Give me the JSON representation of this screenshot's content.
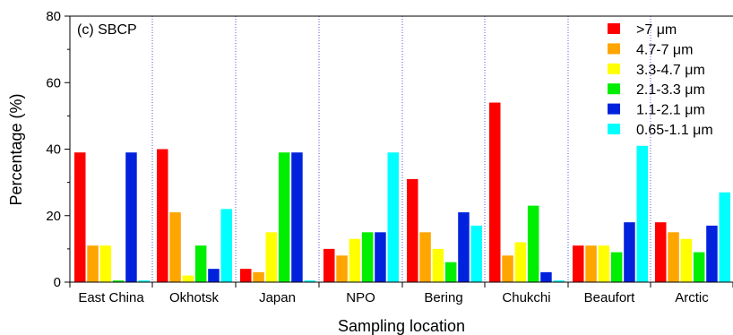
{
  "chart_data": {
    "type": "bar",
    "panel_label": "(c) SBCP",
    "xlabel": "Sampling location",
    "ylabel": "Percentage  (%)",
    "ylim": [
      0,
      80
    ],
    "yticks": [
      "0",
      "20",
      "40",
      "60",
      "80"
    ],
    "categories": [
      "East China",
      "Okhotsk",
      "Japan",
      "NPO",
      "Bering",
      "Chukchi",
      "Beaufort",
      "Arctic"
    ],
    "legend_position": "top-right",
    "series": [
      {
        "name": ">7 μm",
        "color": "#ff0000",
        "values": [
          39,
          40,
          4,
          10,
          31,
          54,
          11,
          18
        ]
      },
      {
        "name": "4.7-7 μm",
        "color": "#ffa500",
        "values": [
          11,
          21,
          3,
          8,
          15,
          8,
          11,
          15
        ]
      },
      {
        "name": "3.3-4.7 μm",
        "color": "#ffff00",
        "values": [
          11,
          2,
          15,
          13,
          10,
          12,
          11,
          13
        ]
      },
      {
        "name": "2.1-3.3 μm",
        "color": "#00ee00",
        "values": [
          0.5,
          11,
          39,
          15,
          6,
          23,
          9,
          9
        ]
      },
      {
        "name": "1.1-2.1 μm",
        "color": "#0022dd",
        "values": [
          39,
          4,
          39,
          15,
          21,
          3,
          18,
          17
        ]
      },
      {
        "name": "0.65-1.1 μm",
        "color": "#00ffff",
        "values": [
          0.5,
          22,
          0.5,
          39,
          17,
          0.5,
          41,
          27
        ]
      }
    ],
    "grid": false
  }
}
